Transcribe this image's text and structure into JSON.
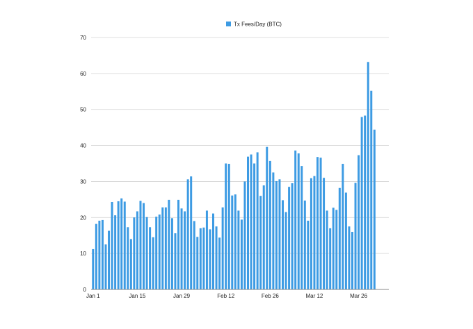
{
  "chart_data": {
    "type": "bar",
    "legend": {
      "label": "Tx Fees/Day (BTC)",
      "placement": "top-center"
    },
    "series": [
      {
        "name": "Tx Fees/Day (BTC)",
        "color": "#3d9be3",
        "values": [
          11.2,
          18.2,
          19.1,
          19.3,
          12.5,
          16.3,
          24.3,
          20.6,
          24.5,
          25.3,
          24.4,
          17.3,
          14.0,
          20.0,
          21.7,
          24.6,
          24.0,
          20.1,
          17.3,
          14.5,
          20.2,
          20.8,
          22.8,
          22.8,
          24.9,
          19.8,
          15.6,
          24.9,
          22.5,
          21.7,
          30.6,
          31.4,
          19.0,
          14.6,
          17.0,
          17.2,
          21.9,
          16.7,
          21.1,
          17.5,
          14.4,
          22.8,
          35.0,
          34.9,
          26.1,
          26.4,
          21.9,
          19.4,
          30.0,
          36.9,
          37.5,
          35.0,
          38.1,
          26.0,
          28.9,
          39.6,
          35.7,
          32.5,
          30.1,
          30.6,
          24.8,
          21.5,
          28.5,
          29.5,
          38.6,
          37.8,
          34.3,
          24.7,
          19.1,
          30.9,
          31.5,
          36.8,
          36.6,
          31.0,
          21.9,
          17.0,
          22.7,
          22.1,
          28.2,
          34.9,
          26.9,
          17.5,
          16.0,
          29.6,
          37.3,
          47.9,
          48.3,
          63.2,
          55.2,
          44.4
        ]
      }
    ],
    "x_tick_labels": [
      {
        "label": "Jan 1",
        "index": 0
      },
      {
        "label": "Jan 15",
        "index": 14
      },
      {
        "label": "Jan 29",
        "index": 28
      },
      {
        "label": "Feb 12",
        "index": 42
      },
      {
        "label": "Feb 26",
        "index": 56
      },
      {
        "label": "Mar 12",
        "index": 70
      },
      {
        "label": "Mar 26",
        "index": 84
      }
    ],
    "y_ticks": [
      0,
      10,
      20,
      30,
      40,
      50,
      60,
      70
    ],
    "ylim": [
      0,
      70
    ],
    "grid": true,
    "title": "",
    "xlabel": "",
    "ylabel": ""
  }
}
